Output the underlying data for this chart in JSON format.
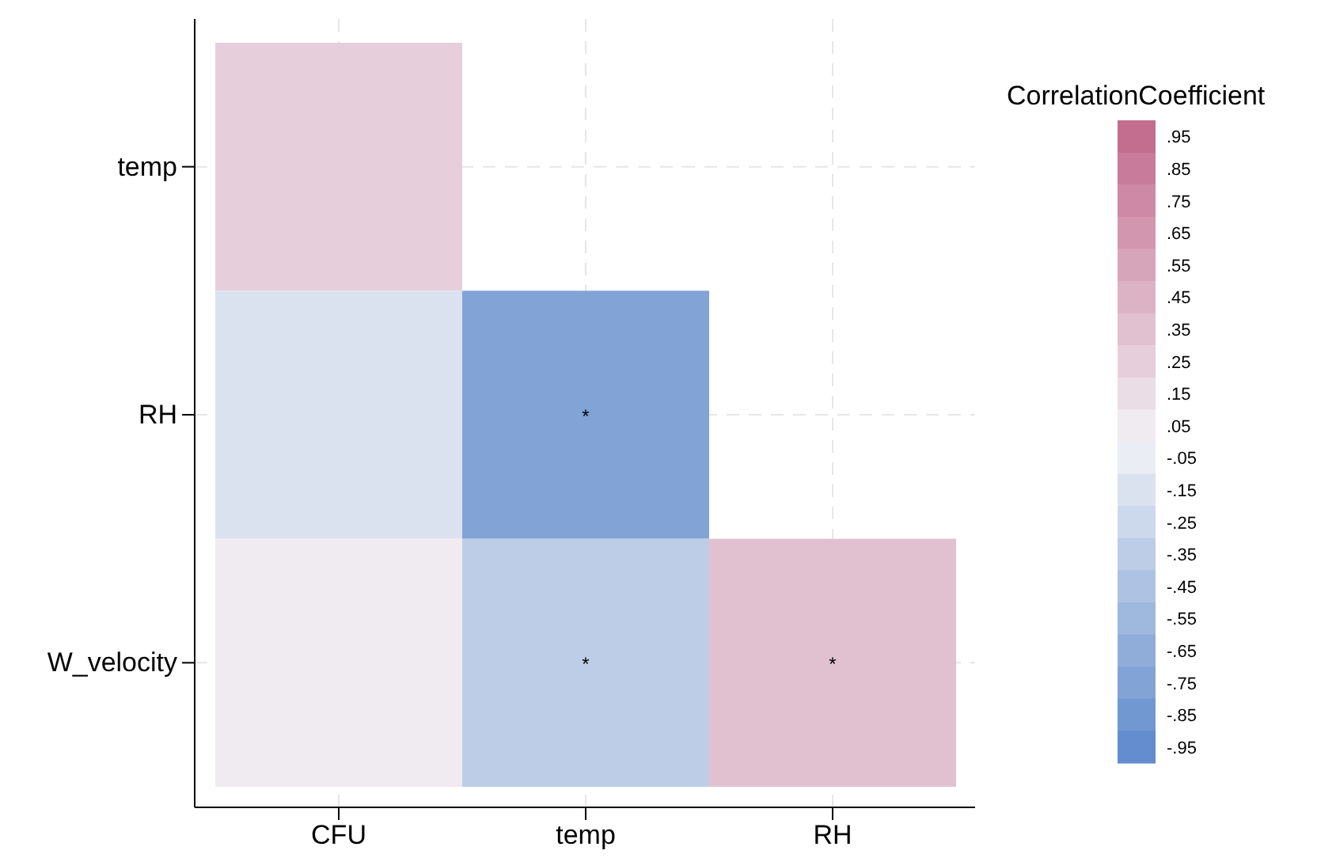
{
  "chart_data": {
    "type": "heatmap",
    "categories": [
      "CFU",
      "temp",
      "RH"
    ],
    "y_categories": [
      "temp",
      "RH",
      "W_velocity"
    ],
    "cells": [
      [
        0.25,
        null,
        null
      ],
      [
        -0.15,
        -0.75,
        null
      ],
      [
        0.05,
        -0.35,
        0.35
      ]
    ],
    "cell_labels": [
      [
        null,
        null,
        null
      ],
      [
        null,
        "*",
        null
      ],
      [
        null,
        "*",
        "*"
      ]
    ],
    "clabel": "CorrelationCoefficient",
    "clim": [
      -1,
      1
    ],
    "cticks": [
      {
        "value": 0.95,
        "label": ".95"
      },
      {
        "value": 0.85,
        "label": ".85"
      },
      {
        "value": 0.75,
        "label": ".75"
      },
      {
        "value": 0.65,
        "label": ".65"
      },
      {
        "value": 0.55,
        "label": ".55"
      },
      {
        "value": 0.45,
        "label": ".45"
      },
      {
        "value": 0.35,
        "label": ".35"
      },
      {
        "value": 0.25,
        "label": ".25"
      },
      {
        "value": 0.15,
        "label": ".15"
      },
      {
        "value": 0.05,
        "label": ".05"
      },
      {
        "value": -0.05,
        "label": "-.05"
      },
      {
        "value": -0.15,
        "label": "-.15"
      },
      {
        "value": -0.25,
        "label": "-.25"
      },
      {
        "value": -0.35,
        "label": "-.35"
      },
      {
        "value": -0.45,
        "label": "-.45"
      },
      {
        "value": -0.55,
        "label": "-.55"
      },
      {
        "value": -0.65,
        "label": "-.65"
      },
      {
        "value": -0.75,
        "label": "-.75"
      },
      {
        "value": -0.85,
        "label": "-.85"
      },
      {
        "value": -0.95,
        "label": "-.95"
      }
    ],
    "grid": true
  }
}
